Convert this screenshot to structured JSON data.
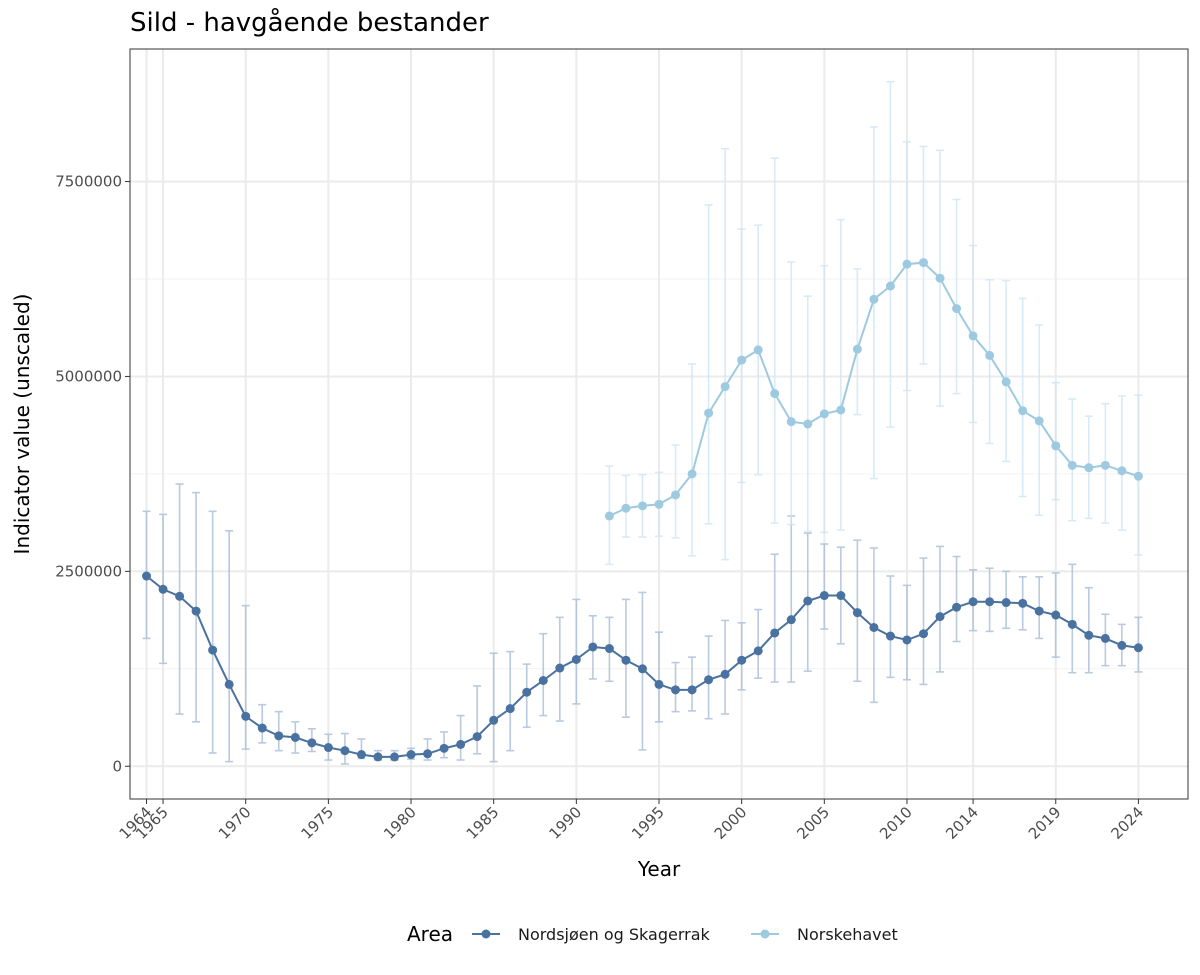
{
  "chart_data": {
    "type": "line",
    "title": "Sild - havgående bestander",
    "xlabel": "Year",
    "ylabel": "Indicator value (unscaled)",
    "xlim": [
      1963,
      2027
    ],
    "ylim": [
      -420000,
      9200000
    ],
    "x_ticks": [
      1964,
      1965,
      1970,
      1975,
      1980,
      1985,
      1990,
      1995,
      2000,
      2005,
      2010,
      2014,
      2019,
      2024
    ],
    "y_ticks": [
      0,
      2500000,
      5000000,
      7500000
    ],
    "y_tick_labels": [
      "0",
      "2500000",
      "5000000",
      "7500000"
    ],
    "grid": true,
    "legend": {
      "title": "Area",
      "position": "bottom"
    },
    "series": [
      {
        "name": "Nordsjøen og Skagerrak",
        "color": "#4a72a0",
        "x": [
          1964,
          1965,
          1966,
          1967,
          1968,
          1969,
          1970,
          1971,
          1972,
          1973,
          1974,
          1975,
          1976,
          1977,
          1978,
          1979,
          1980,
          1981,
          1982,
          1983,
          1984,
          1985,
          1986,
          1987,
          1988,
          1989,
          1990,
          1991,
          1992,
          1993,
          1994,
          1995,
          1996,
          1997,
          1998,
          1999,
          2000,
          2001,
          2002,
          2003,
          2004,
          2005,
          2006,
          2007,
          2008,
          2009,
          2010,
          2011,
          2012,
          2013,
          2014,
          2015,
          2016,
          2017,
          2018,
          2019,
          2020,
          2021,
          2022,
          2023,
          2024
        ],
        "y": [
          2440000,
          2270000,
          2180000,
          1990000,
          1490000,
          1050000,
          640000,
          490000,
          390000,
          370000,
          300000,
          240000,
          200000,
          150000,
          120000,
          120000,
          150000,
          160000,
          230000,
          280000,
          380000,
          590000,
          740000,
          950000,
          1100000,
          1260000,
          1370000,
          1530000,
          1510000,
          1360000,
          1250000,
          1050000,
          980000,
          980000,
          1110000,
          1180000,
          1360000,
          1480000,
          1710000,
          1880000,
          2120000,
          2190000,
          2190000,
          1970000,
          1780000,
          1670000,
          1620000,
          1700000,
          1920000,
          2040000,
          2110000,
          2110000,
          2100000,
          2090000,
          1990000,
          1940000,
          1820000,
          1680000,
          1640000,
          1550000,
          1520000
        ],
        "ci_low": [
          1640000,
          1320000,
          670000,
          570000,
          170000,
          60000,
          220000,
          300000,
          200000,
          170000,
          190000,
          80000,
          30000,
          100000,
          80000,
          80000,
          90000,
          80000,
          110000,
          80000,
          160000,
          60000,
          200000,
          500000,
          650000,
          580000,
          800000,
          1120000,
          1090000,
          630000,
          210000,
          570000,
          700000,
          710000,
          610000,
          670000,
          980000,
          1130000,
          1080000,
          1080000,
          1220000,
          1760000,
          1570000,
          1090000,
          820000,
          1140000,
          1110000,
          1050000,
          1210000,
          1600000,
          1740000,
          1730000,
          1770000,
          1750000,
          1640000,
          1400000,
          1200000,
          1200000,
          1290000,
          1290000,
          1210000
        ],
        "ci_high": [
          3270000,
          3230000,
          3620000,
          3510000,
          3270000,
          3020000,
          2060000,
          790000,
          700000,
          570000,
          480000,
          410000,
          420000,
          350000,
          200000,
          200000,
          230000,
          350000,
          440000,
          650000,
          1030000,
          1450000,
          1470000,
          1310000,
          1700000,
          1910000,
          2140000,
          1930000,
          1910000,
          2140000,
          2230000,
          1720000,
          1330000,
          1400000,
          1670000,
          1870000,
          1840000,
          2010000,
          2720000,
          3210000,
          2990000,
          2850000,
          2810000,
          2900000,
          2800000,
          2440000,
          2320000,
          2670000,
          2820000,
          2690000,
          2520000,
          2540000,
          2500000,
          2430000,
          2430000,
          2480000,
          2590000,
          2290000,
          1950000,
          1820000,
          1910000
        ]
      },
      {
        "name": "Norskehavet",
        "color": "#9ecae1",
        "x": [
          1992,
          1993,
          1994,
          1995,
          1996,
          1997,
          1998,
          1999,
          2000,
          2001,
          2002,
          2003,
          2004,
          2005,
          2006,
          2007,
          2008,
          2009,
          2010,
          2011,
          2012,
          2013,
          2014,
          2015,
          2016,
          2017,
          2018,
          2019,
          2020,
          2021,
          2022,
          2023,
          2024
        ],
        "y": [
          3210000,
          3310000,
          3340000,
          3360000,
          3480000,
          3750000,
          4530000,
          4870000,
          5210000,
          5340000,
          4780000,
          4420000,
          4390000,
          4520000,
          4570000,
          5350000,
          5990000,
          6160000,
          6440000,
          6460000,
          6260000,
          5870000,
          5520000,
          5270000,
          4930000,
          4560000,
          4430000,
          4110000,
          3860000,
          3830000,
          3860000,
          3790000,
          3720000
        ],
        "ci_low": [
          2590000,
          2940000,
          2940000,
          2950000,
          2930000,
          2700000,
          3110000,
          2650000,
          3640000,
          3740000,
          3120000,
          3100000,
          3010000,
          3000000,
          3030000,
          4510000,
          3690000,
          4350000,
          4820000,
          5160000,
          4620000,
          4780000,
          4410000,
          4140000,
          3910000,
          3460000,
          3220000,
          3420000,
          3150000,
          3180000,
          3120000,
          3030000,
          2710000
        ],
        "ci_high": [
          3850000,
          3730000,
          3740000,
          3770000,
          4120000,
          5160000,
          7200000,
          7920000,
          6890000,
          6940000,
          7800000,
          6470000,
          6030000,
          6420000,
          7010000,
          6380000,
          8200000,
          8780000,
          8010000,
          7950000,
          7900000,
          7270000,
          6680000,
          6240000,
          6230000,
          6000000,
          5660000,
          4920000,
          4710000,
          4490000,
          4650000,
          4750000,
          4760000
        ]
      }
    ]
  }
}
